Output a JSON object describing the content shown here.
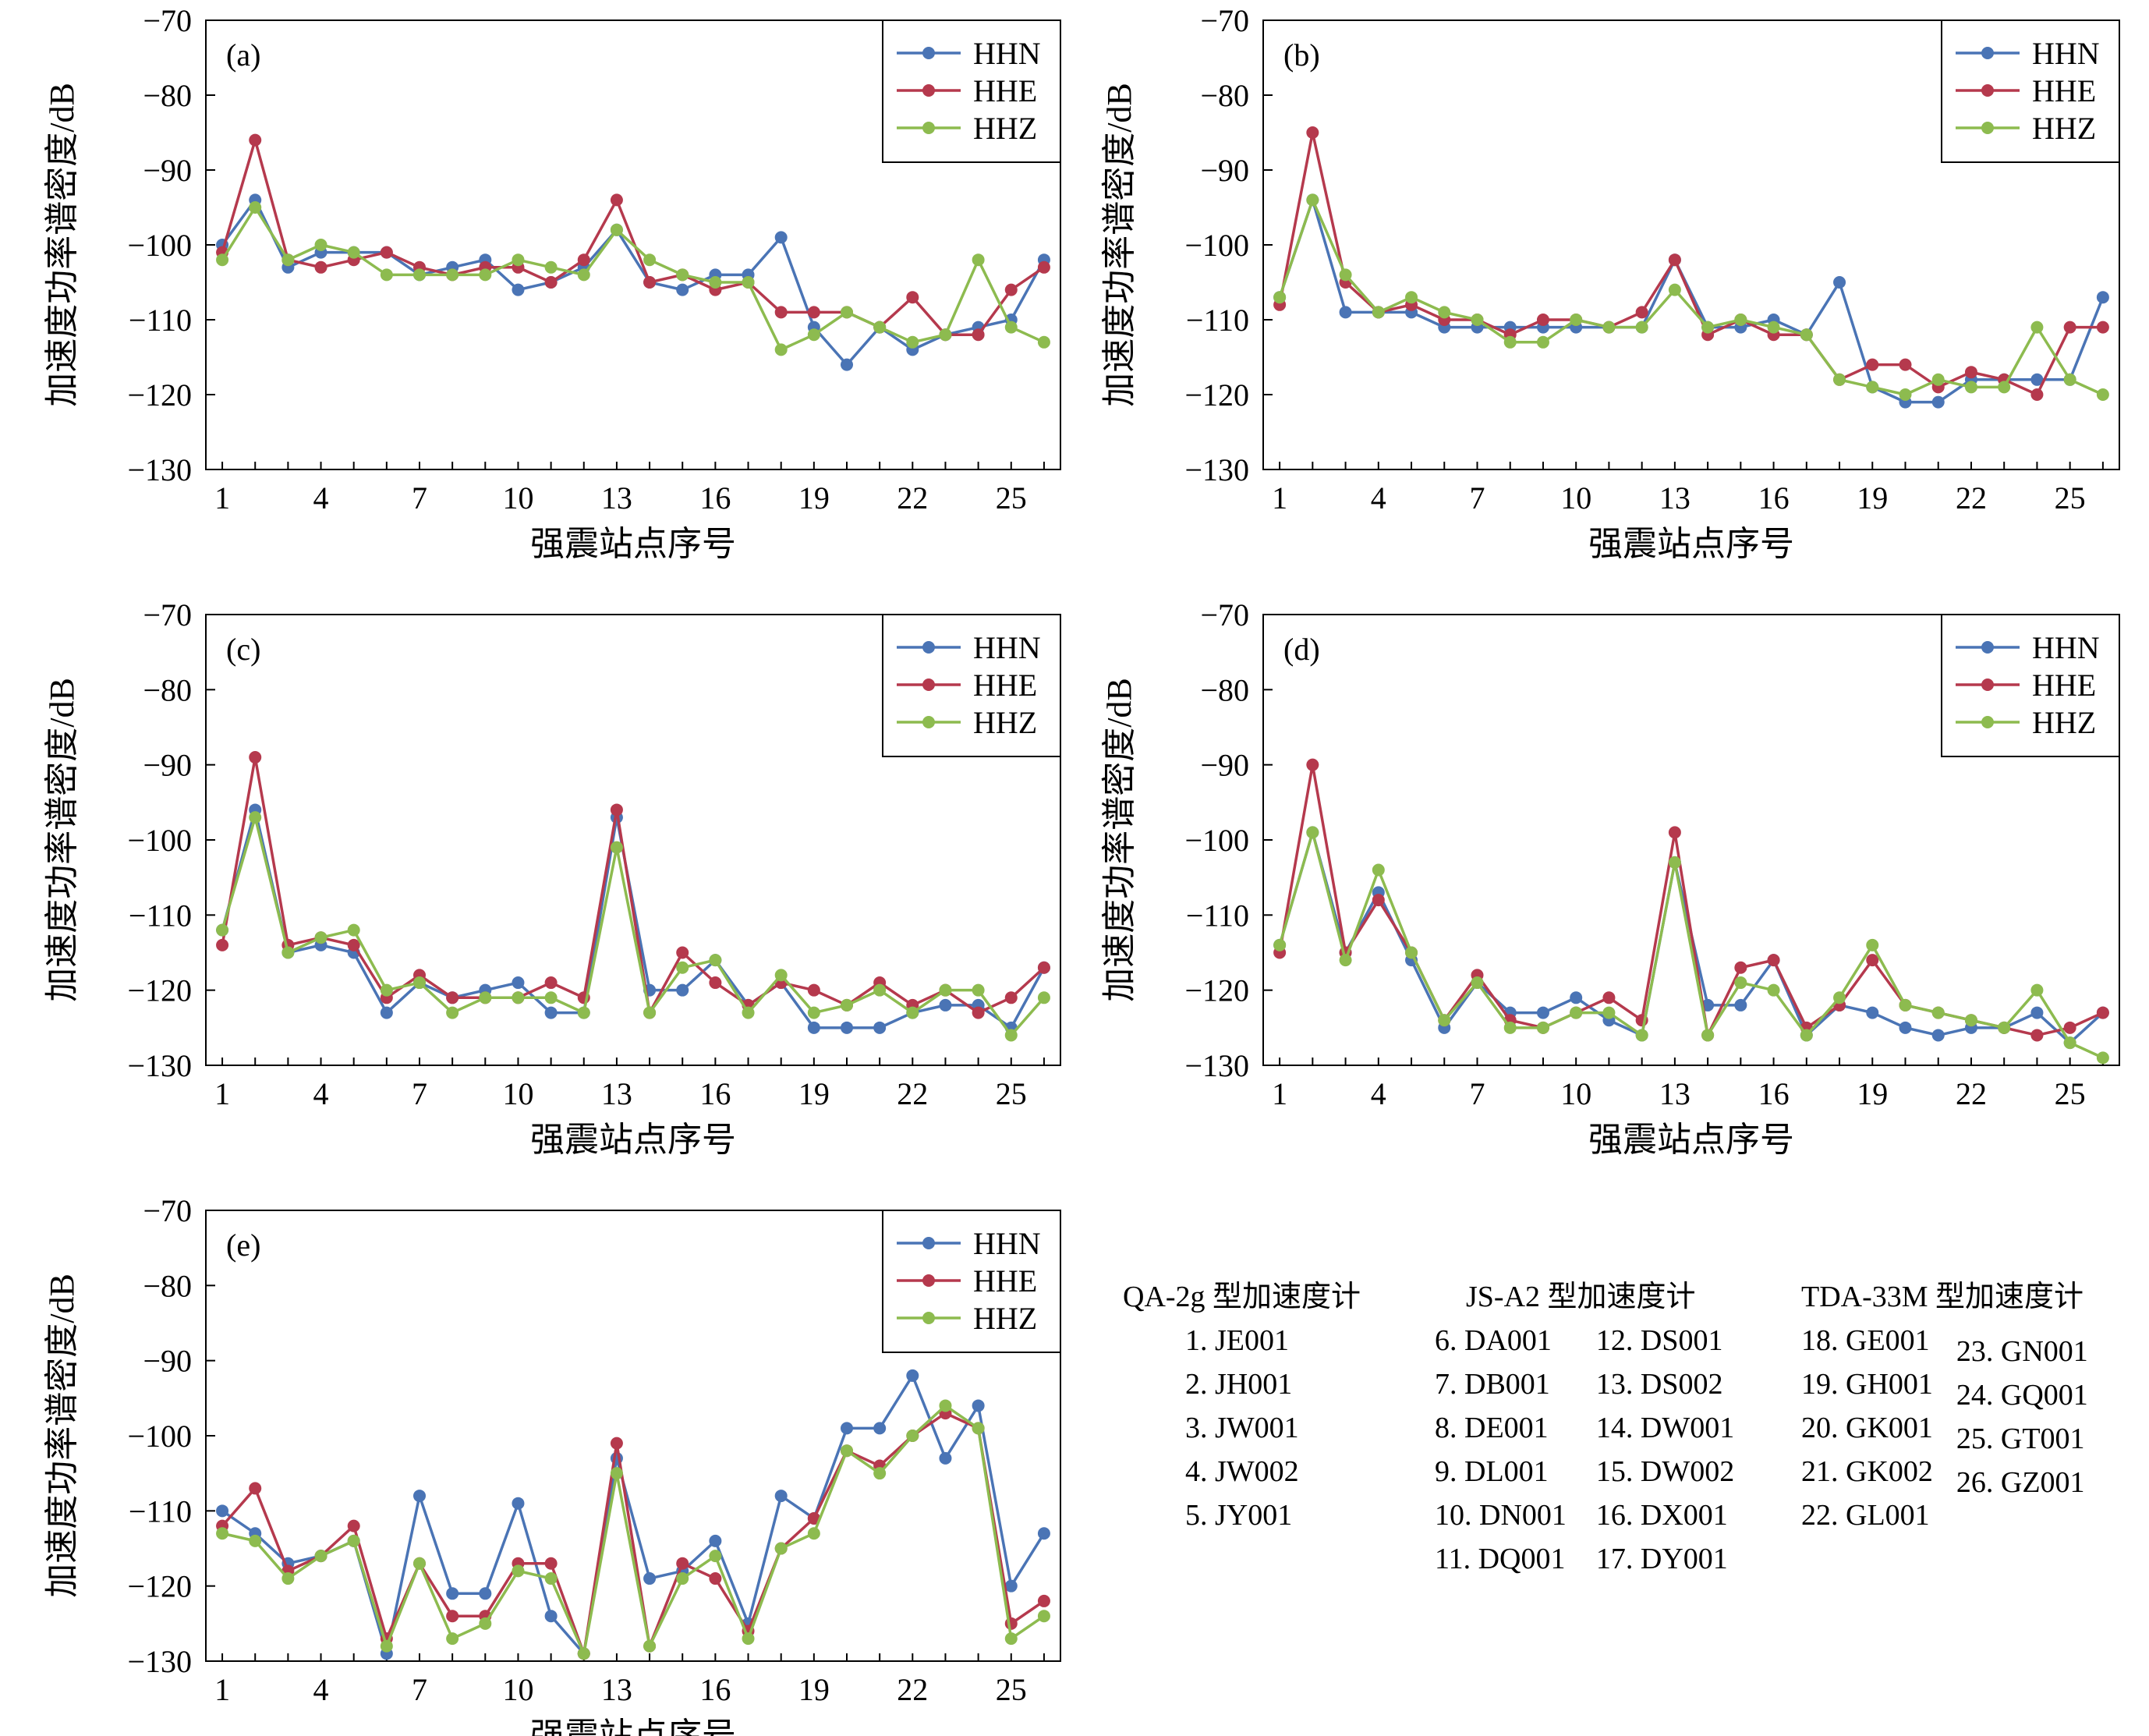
{
  "series_styles": [
    {
      "name": "HHN",
      "color": "#4a74b5"
    },
    {
      "name": "HHE",
      "color": "#b5394d"
    },
    {
      "name": "HHZ",
      "color": "#8dbb4f"
    }
  ],
  "chart_data": [
    {
      "type": "line",
      "panel_label": "(a)",
      "xlabel": "强震站点序号",
      "ylabel": "加速度功率谱密度/dB",
      "x": [
        1,
        2,
        3,
        4,
        5,
        6,
        7,
        8,
        9,
        10,
        11,
        12,
        13,
        14,
        15,
        16,
        17,
        18,
        19,
        20,
        21,
        22,
        23,
        24,
        25,
        26
      ],
      "x_ticks": [
        1,
        4,
        7,
        10,
        13,
        16,
        19,
        22,
        25
      ],
      "ylim": [
        -130,
        -70
      ],
      "y_ticks": [
        -70,
        -80,
        -90,
        -100,
        -110,
        -120,
        -130
      ],
      "y_tick_labels": [
        "−70",
        "−80",
        "−90",
        "−100",
        "−110",
        "−120",
        "−130"
      ],
      "legend_position": "top-right",
      "series": [
        {
          "name": "HHN",
          "values": [
            -100,
            -94,
            -103,
            -101,
            -101,
            -101,
            -104,
            -103,
            -102,
            -106,
            -105,
            -103,
            -98,
            -105,
            -106,
            -104,
            -104,
            -99,
            -111,
            -116,
            -111,
            -114,
            -112,
            -111,
            -110,
            -102
          ]
        },
        {
          "name": "HHE",
          "values": [
            -101,
            -86,
            -102,
            -103,
            -102,
            -101,
            -103,
            -104,
            -103,
            -103,
            -105,
            -102,
            -94,
            -105,
            -104,
            -106,
            -105,
            -109,
            -109,
            -109,
            -111,
            -107,
            -112,
            -112,
            -106,
            -103
          ]
        },
        {
          "name": "HHZ",
          "values": [
            -102,
            -95,
            -102,
            -100,
            -101,
            -104,
            -104,
            -104,
            -104,
            -102,
            -103,
            -104,
            -98,
            -102,
            -104,
            -105,
            -105,
            -114,
            -112,
            -109,
            -111,
            -113,
            -112,
            -102,
            -111,
            -113
          ]
        }
      ]
    },
    {
      "type": "line",
      "panel_label": "(b)",
      "xlabel": "强震站点序号",
      "ylabel": "加速度功率谱密度/dB",
      "x": [
        1,
        2,
        3,
        4,
        5,
        6,
        7,
        8,
        9,
        10,
        11,
        12,
        13,
        14,
        15,
        16,
        17,
        18,
        19,
        20,
        21,
        22,
        23,
        24,
        25,
        26
      ],
      "x_ticks": [
        1,
        4,
        7,
        10,
        13,
        16,
        19,
        22,
        25
      ],
      "ylim": [
        -130,
        -70
      ],
      "y_ticks": [
        -70,
        -80,
        -90,
        -100,
        -110,
        -120,
        -130
      ],
      "y_tick_labels": [
        "−70",
        "−80",
        "−90",
        "−100",
        "−110",
        "−120",
        "−130"
      ],
      "legend_position": "top-right",
      "series": [
        {
          "name": "HHN",
          "values": [
            -107,
            -94,
            -109,
            -109,
            -109,
            -111,
            -111,
            -111,
            -111,
            -111,
            -111,
            -111,
            -102,
            -111,
            -111,
            -110,
            -112,
            -105,
            -119,
            -121,
            -121,
            -118,
            -118,
            -118,
            -118,
            -107
          ]
        },
        {
          "name": "HHE",
          "values": [
            -108,
            -85,
            -105,
            -109,
            -108,
            -110,
            -110,
            -112,
            -110,
            -110,
            -111,
            -109,
            -102,
            -112,
            -110,
            -112,
            -112,
            -118,
            -116,
            -116,
            -119,
            -117,
            -118,
            -120,
            -111,
            -111
          ]
        },
        {
          "name": "HHZ",
          "values": [
            -107,
            -94,
            -104,
            -109,
            -107,
            -109,
            -110,
            -113,
            -113,
            -110,
            -111,
            -111,
            -106,
            -111,
            -110,
            -111,
            -112,
            -118,
            -119,
            -120,
            -118,
            -119,
            -119,
            -111,
            -118,
            -120
          ]
        }
      ]
    },
    {
      "type": "line",
      "panel_label": "(c)",
      "xlabel": "强震站点序号",
      "ylabel": "加速度功率谱密度/dB",
      "x": [
        1,
        2,
        3,
        4,
        5,
        6,
        7,
        8,
        9,
        10,
        11,
        12,
        13,
        14,
        15,
        16,
        17,
        18,
        19,
        20,
        21,
        22,
        23,
        24,
        25,
        26
      ],
      "x_ticks": [
        1,
        4,
        7,
        10,
        13,
        16,
        19,
        22,
        25
      ],
      "ylim": [
        -130,
        -70
      ],
      "y_ticks": [
        -70,
        -80,
        -90,
        -100,
        -110,
        -120,
        -130
      ],
      "y_tick_labels": [
        "−70",
        "−80",
        "−90",
        "−100",
        "−110",
        "−120",
        "−130"
      ],
      "legend_position": "top-right",
      "series": [
        {
          "name": "HHN",
          "values": [
            -112,
            -96,
            -115,
            -114,
            -115,
            -123,
            -119,
            -121,
            -120,
            -119,
            -123,
            -123,
            -97,
            -120,
            -120,
            -116,
            -122,
            -119,
            -125,
            -125,
            -125,
            -123,
            -122,
            -122,
            -125,
            -117
          ]
        },
        {
          "name": "HHE",
          "values": [
            -114,
            -89,
            -114,
            -113,
            -114,
            -121,
            -118,
            -121,
            -121,
            -121,
            -119,
            -121,
            -96,
            -123,
            -115,
            -119,
            -122,
            -119,
            -120,
            -122,
            -119,
            -122,
            -120,
            -123,
            -121,
            -117
          ]
        },
        {
          "name": "HHZ",
          "values": [
            -112,
            -97,
            -115,
            -113,
            -112,
            -120,
            -119,
            -123,
            -121,
            -121,
            -121,
            -123,
            -101,
            -123,
            -117,
            -116,
            -123,
            -118,
            -123,
            -122,
            -120,
            -123,
            -120,
            -120,
            -126,
            -121
          ]
        }
      ]
    },
    {
      "type": "line",
      "panel_label": "(d)",
      "xlabel": "强震站点序号",
      "ylabel": "加速度功率谱密度/dB",
      "x": [
        1,
        2,
        3,
        4,
        5,
        6,
        7,
        8,
        9,
        10,
        11,
        12,
        13,
        14,
        15,
        16,
        17,
        18,
        19,
        20,
        21,
        22,
        23,
        24,
        25,
        26
      ],
      "x_ticks": [
        1,
        4,
        7,
        10,
        13,
        16,
        19,
        22,
        25
      ],
      "ylim": [
        -130,
        -70
      ],
      "y_ticks": [
        -70,
        -80,
        -90,
        -100,
        -110,
        -120,
        -130
      ],
      "y_tick_labels": [
        "−70",
        "−80",
        "−90",
        "−100",
        "−110",
        "−120",
        "−130"
      ],
      "legend_position": "top-right",
      "series": [
        {
          "name": "HHN",
          "values": [
            -114,
            -99,
            -115,
            -107,
            -116,
            -125,
            -119,
            -123,
            -123,
            -121,
            -124,
            -126,
            -103,
            -122,
            -122,
            -116,
            -126,
            -122,
            -123,
            -125,
            -126,
            -125,
            -125,
            -123,
            -127,
            -123
          ]
        },
        {
          "name": "HHE",
          "values": [
            -115,
            -90,
            -115,
            -108,
            -115,
            -124,
            -118,
            -124,
            -125,
            -123,
            -121,
            -124,
            -99,
            -126,
            -117,
            -116,
            -125,
            -122,
            -116,
            -122,
            -123,
            -124,
            -125,
            -126,
            -125,
            -123
          ]
        },
        {
          "name": "HHZ",
          "values": [
            -114,
            -99,
            -116,
            -104,
            -115,
            -124,
            -119,
            -125,
            -125,
            -123,
            -123,
            -126,
            -103,
            -126,
            -119,
            -120,
            -126,
            -121,
            -114,
            -122,
            -123,
            -124,
            -125,
            -120,
            -127,
            -129
          ]
        }
      ]
    },
    {
      "type": "line",
      "panel_label": "(e)",
      "xlabel": "强震站点序号",
      "ylabel": "加速度功率谱密度/dB",
      "x": [
        1,
        2,
        3,
        4,
        5,
        6,
        7,
        8,
        9,
        10,
        11,
        12,
        13,
        14,
        15,
        16,
        17,
        18,
        19,
        20,
        21,
        22,
        23,
        24,
        25,
        26
      ],
      "x_ticks": [
        1,
        4,
        7,
        10,
        13,
        16,
        19,
        22,
        25
      ],
      "ylim": [
        -130,
        -70
      ],
      "y_ticks": [
        -70,
        -80,
        -90,
        -100,
        -110,
        -120,
        -130
      ],
      "y_tick_labels": [
        "−70",
        "−80",
        "−90",
        "−100",
        "−110",
        "−120",
        "−130"
      ],
      "legend_position": "top-right",
      "series": [
        {
          "name": "HHN",
          "values": [
            -110,
            -113,
            -117,
            -116,
            -114,
            -129,
            -108,
            -121,
            -121,
            -109,
            -124,
            -129,
            -103,
            -119,
            -118,
            -114,
            -125,
            -108,
            -111,
            -99,
            -99,
            -92,
            -103,
            -96,
            -120,
            -113
          ]
        },
        {
          "name": "HHE",
          "values": [
            -112,
            -107,
            -118,
            -116,
            -112,
            -127,
            -117,
            -124,
            -124,
            -117,
            -117,
            -129,
            -101,
            -128,
            -117,
            -119,
            -126,
            -115,
            -111,
            -102,
            -104,
            -100,
            -97,
            -99,
            -125,
            -122
          ]
        },
        {
          "name": "HHZ",
          "values": [
            -113,
            -114,
            -119,
            -116,
            -114,
            -128,
            -117,
            -127,
            -125,
            -118,
            -119,
            -129,
            -105,
            -128,
            -119,
            -116,
            -127,
            -115,
            -113,
            -102,
            -105,
            -100,
            -96,
            -99,
            -127,
            -124
          ]
        }
      ]
    }
  ],
  "station_legend": [
    {
      "heading": "QA-2g 型加速度计",
      "columns": [
        [
          "1. JE001",
          "2. JH001",
          "3. JW001",
          "4. JW002",
          "5. JY001"
        ]
      ]
    },
    {
      "heading": "JS-A2 型加速度计",
      "columns": [
        [
          "6. DA001",
          "7. DB001",
          "8. DE001",
          "9. DL001",
          "10. DN001",
          "11. DQ001"
        ],
        [
          "12. DS001",
          "13. DS002",
          "14. DW001",
          "15. DW002",
          "16. DX001",
          "17. DY001"
        ]
      ]
    },
    {
      "heading": "TDA-33M 型加速度计",
      "columns": [
        [
          "18. GE001",
          "19. GH001",
          "20. GK001",
          "21. GK002",
          "22. GL001"
        ],
        [
          "23. GN001",
          "24. GQ001",
          "25. GT001",
          "26. GZ001"
        ]
      ]
    }
  ]
}
